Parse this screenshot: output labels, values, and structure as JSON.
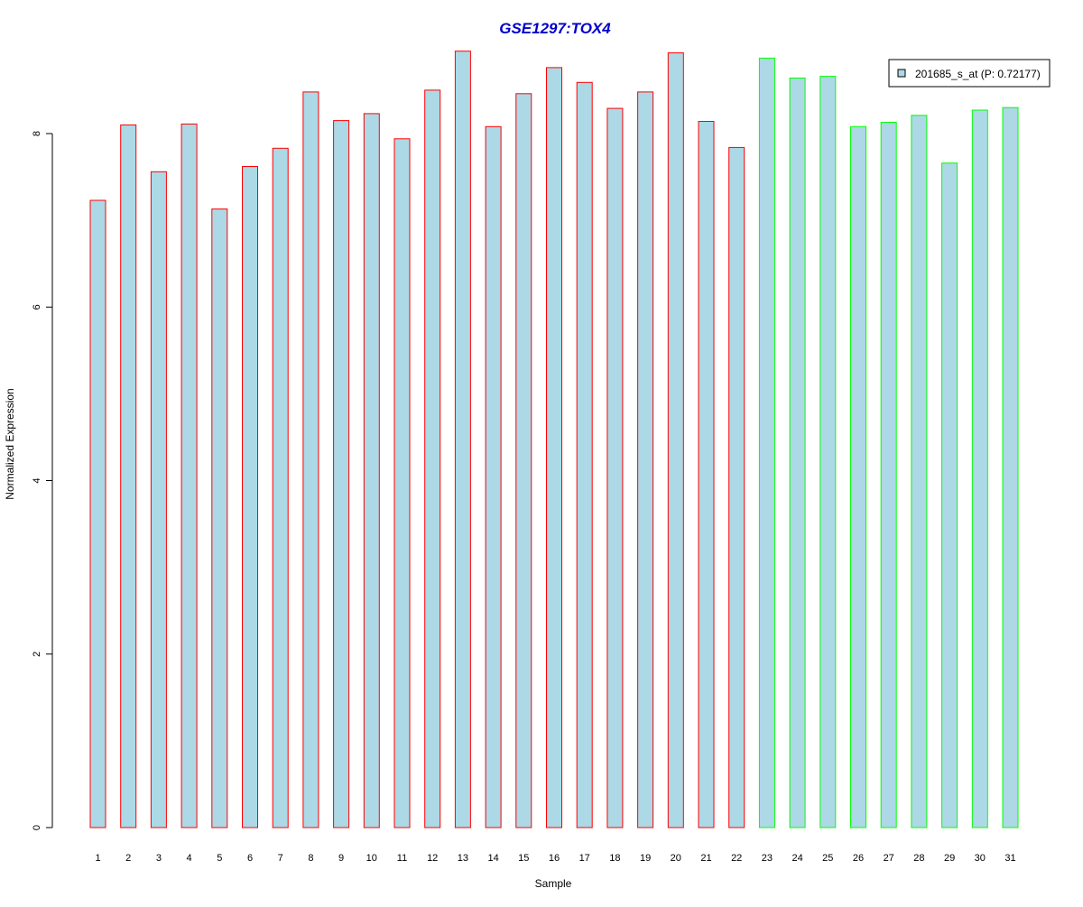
{
  "chart_data": {
    "type": "bar",
    "title": "GSE1297:TOX4",
    "xlabel": "Sample",
    "ylabel": "Normalized Expression",
    "ylim": [
      0,
      9.0
    ],
    "yticks": [
      0,
      2,
      4,
      6,
      8
    ],
    "grid": false,
    "legend": {
      "placement": "top-right",
      "label": "201685_s_at (P: 0.72177)",
      "fill": "#add8e6"
    },
    "categories": [
      "1",
      "2",
      "3",
      "4",
      "5",
      "6",
      "7",
      "8",
      "9",
      "10",
      "11",
      "12",
      "13",
      "14",
      "15",
      "16",
      "17",
      "18",
      "19",
      "20",
      "21",
      "22",
      "23",
      "24",
      "25",
      "26",
      "27",
      "28",
      "29",
      "30",
      "31"
    ],
    "values": [
      7.23,
      8.1,
      7.56,
      8.11,
      7.13,
      7.62,
      7.83,
      8.48,
      8.15,
      8.23,
      7.94,
      8.5,
      8.95,
      8.08,
      8.46,
      8.76,
      8.59,
      8.29,
      8.48,
      8.93,
      8.14,
      7.84,
      8.87,
      8.64,
      8.66,
      8.08,
      8.13,
      8.21,
      7.66,
      8.27,
      8.3
    ],
    "groups": [
      "red",
      "red",
      "red",
      "red",
      "red",
      "red",
      "red",
      "red",
      "red",
      "red",
      "red",
      "red",
      "red",
      "red",
      "red",
      "red",
      "red",
      "red",
      "red",
      "red",
      "red",
      "red",
      "green",
      "green",
      "green",
      "green",
      "green",
      "green",
      "green",
      "green",
      "green"
    ],
    "colors": {
      "bar_fill": "#add8e6",
      "red_border": "#ff0000",
      "green_border": "#00ff00",
      "title": "#0000cc",
      "axis": "#000000"
    }
  }
}
